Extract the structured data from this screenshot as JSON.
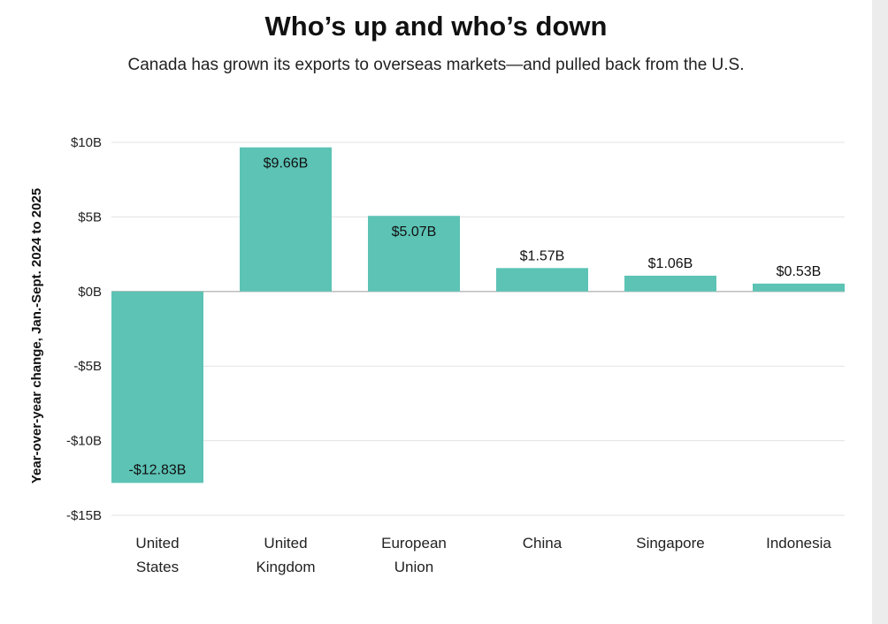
{
  "chart_data": {
    "type": "bar",
    "title": "Who’s up and who’s down",
    "subtitle": "Canada has grown its exports to overseas markets—and pulled back from the U.S.",
    "ylabel": "Year-over-year change, Jan.-Sept. 2024 to 2025",
    "xlabel": "",
    "categories": [
      [
        "United",
        "States"
      ],
      [
        "United",
        "Kingdom"
      ],
      [
        "European",
        "Union"
      ],
      [
        "China"
      ],
      [
        "Singapore"
      ],
      [
        "Indonesia"
      ]
    ],
    "values": [
      -12.83,
      9.66,
      5.07,
      1.57,
      1.06,
      0.53
    ],
    "value_labels": [
      "-$12.83B",
      "$9.66B",
      "$5.07B",
      "$1.57B",
      "$1.06B",
      "$0.53B"
    ],
    "ylim": [
      -15,
      10
    ],
    "yticks": [
      10,
      5,
      0,
      -5,
      -10,
      -15
    ],
    "ytick_labels": [
      "$10B",
      "$5B",
      "$0B",
      "-$5B",
      "-$10B",
      "-$15B"
    ],
    "grid": true,
    "bar_color": "#5cc3b5",
    "grid_color": "#e3e3e3",
    "zero_line_color": "#bdbdbd"
  }
}
